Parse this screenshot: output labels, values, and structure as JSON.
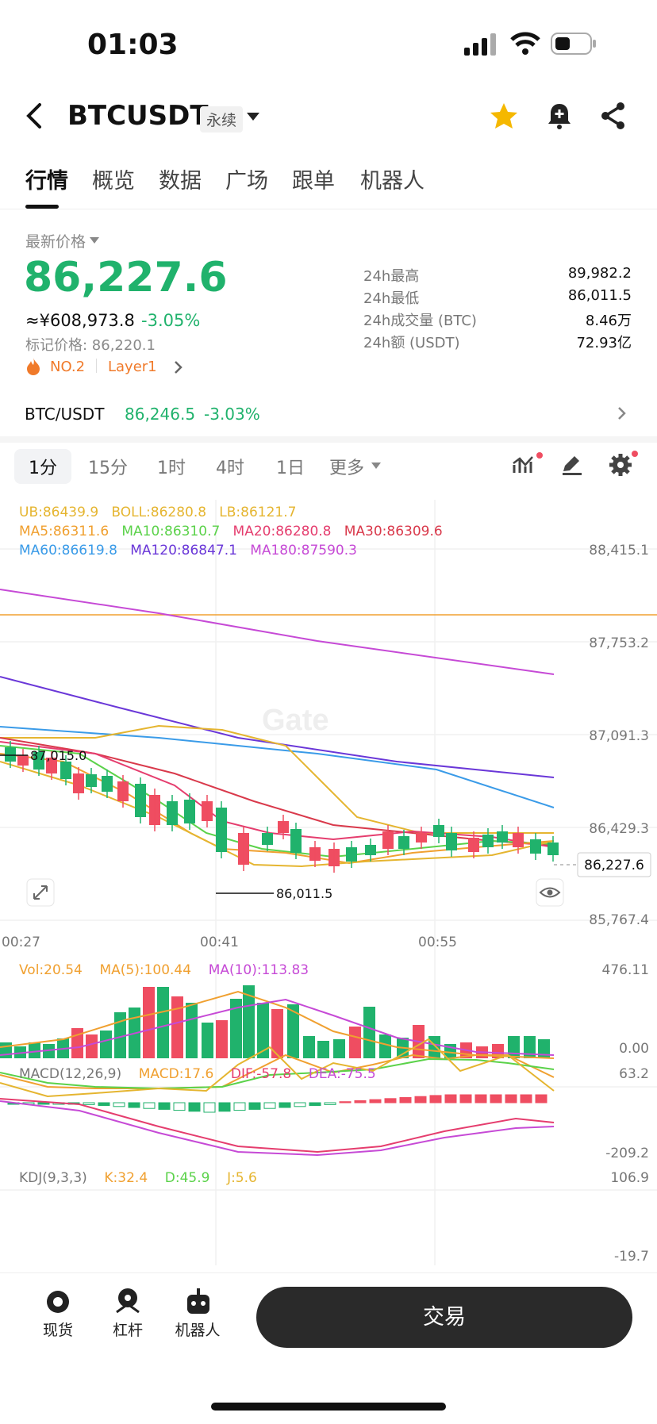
{
  "status": {
    "time": "01:03"
  },
  "header": {
    "symbol": "BTCUSDT",
    "badge": "永续"
  },
  "tabs": [
    "行情",
    "概览",
    "数据",
    "广场",
    "跟单",
    "机器人"
  ],
  "price": {
    "label": "最新价格",
    "last": "86,227.6",
    "cny": "≈¥608,973.8",
    "change": "-3.05%",
    "mark": "标记价格: 86,220.1",
    "rank": "NO.2",
    "tag": "Layer1"
  },
  "stats": [
    {
      "label": "24h最高",
      "value": "89,982.2"
    },
    {
      "label": "24h最低",
      "value": "86,011.5"
    },
    {
      "label": "24h成交量 (BTC)",
      "value": "8.46万"
    },
    {
      "label": "24h额 (USDT)",
      "value": "72.93亿"
    }
  ],
  "spot": {
    "pair": "BTC/USDT",
    "price": "86,246.5",
    "change": "-3.03%"
  },
  "timeframes": [
    "1分",
    "15分",
    "1时",
    "4时",
    "1日",
    "更多"
  ],
  "chart_labels": {
    "boll": [
      "UB:86439.9",
      "BOLL:86280.8",
      "LB:86121.7"
    ],
    "ma1": [
      "MA5:86311.6",
      "MA10:86310.7",
      "MA20:86280.8",
      "MA30:86309.6"
    ],
    "ma2": [
      "MA60:86619.8",
      "MA120:86847.1",
      "MA180:87590.3"
    ],
    "yaxis": [
      "88,415.1",
      "87,753.2",
      "87,091.3",
      "86,429.3",
      "85,767.4"
    ],
    "xaxis": [
      "00:27",
      "00:41",
      "00:55"
    ],
    "high_mark": "87,015.0",
    "low_mark": "86,011.5",
    "current": "86,227.6",
    "watermark": "Gate",
    "vol": [
      "Vol:20.54",
      "MA(5):100.44",
      "MA(10):113.83"
    ],
    "vol_axis": [
      "476.11",
      "0.00"
    ],
    "macd": [
      "MACD(12,26,9)",
      "MACD:17.6",
      "DIF:-57.8",
      "DEA:-75.5"
    ],
    "macd_axis": [
      "63.2",
      "-209.2"
    ],
    "kdj": [
      "KDJ(9,3,3)",
      "K:32.4",
      "D:45.9",
      "J:5.6"
    ],
    "kdj_axis": [
      "106.9",
      "-19.7"
    ]
  },
  "colors": {
    "up": "#20b26c",
    "down": "#ef4d61",
    "ma5": "#f0a030",
    "ma10": "#5bd24a",
    "ma20": "#e53d6e",
    "ma30": "#d9394b",
    "ma60": "#3a9be8",
    "ma120": "#6a37d8",
    "ma180": "#c64ad6",
    "boll": "#e5b530"
  },
  "bottom_nav": [
    "现货",
    "杠杆",
    "机器人"
  ],
  "trade_button": "交易"
}
